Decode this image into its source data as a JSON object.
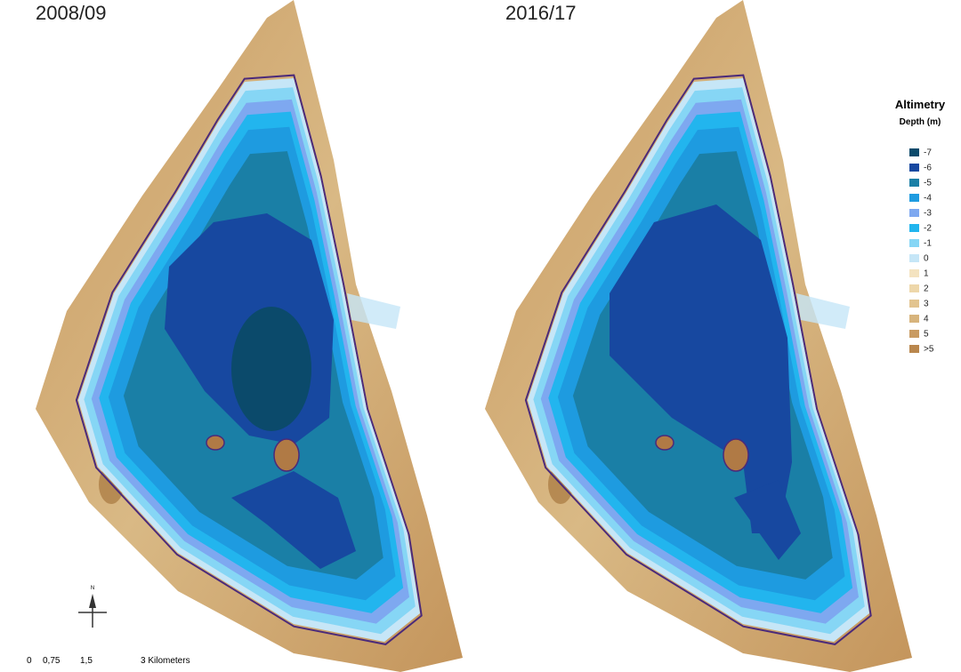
{
  "maps": [
    {
      "title": "2008/09"
    },
    {
      "title": "2016/17"
    }
  ],
  "legend": {
    "title": "Altimetry",
    "subtitle": "Depth (m)",
    "items": [
      {
        "label": "-7",
        "color": "#0b4a6b"
      },
      {
        "label": "-6",
        "color": "#1748a0"
      },
      {
        "label": "-5",
        "color": "#1a7fa6"
      },
      {
        "label": "-4",
        "color": "#1e9be0"
      },
      {
        "label": "-3",
        "color": "#7ea8f0"
      },
      {
        "label": "-2",
        "color": "#22b5ee"
      },
      {
        "label": "-1",
        "color": "#86d6f5"
      },
      {
        "label": "0",
        "color": "#c6e6f7"
      },
      {
        "label": "1",
        "color": "#f4e3c0"
      },
      {
        "label": "2",
        "color": "#eed7aa"
      },
      {
        "label": "3",
        "color": "#e2c48f"
      },
      {
        "label": "4",
        "color": "#d7b47c"
      },
      {
        "label": "5",
        "color": "#c99b62"
      },
      {
        "label": ">5",
        "color": "#b9874d"
      }
    ]
  },
  "scale_bar": {
    "labels": [
      "0",
      "0,75",
      "1,5",
      "3 Kilometers"
    ]
  },
  "north_arrow": {
    "label": "N"
  }
}
